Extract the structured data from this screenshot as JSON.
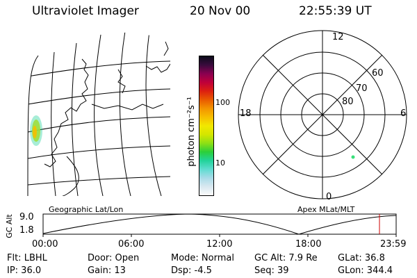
{
  "header": {
    "title": "Ultraviolet Imager",
    "date": "20 Nov 00",
    "time": "22:55:39 UT"
  },
  "colorbar": {
    "label": "photon cm⁻²s⁻¹",
    "tick_100": "100",
    "tick_10": "10",
    "colors": [
      "#fbfbfb",
      "#d9e8f0",
      "#a8dbe8",
      "#5fdcd0",
      "#22d39a",
      "#2bcf3a",
      "#8ee015",
      "#d4e600",
      "#f2e800",
      "#f6be00",
      "#f39400",
      "#e95a00",
      "#dc1f10",
      "#c0003a",
      "#8a0050",
      "#3a0b3d",
      "#0b0b1a"
    ]
  },
  "polar": {
    "lat_80": "80",
    "lat_70": "70",
    "lat_60": "60",
    "mlt_12": "12",
    "mlt_18": "18",
    "mlt_6": "6",
    "mlt_0": "0",
    "dot_color": "#39e07a"
  },
  "timeline": {
    "left_label": "Geographic Lat/Lon",
    "right_label": "Apex MLat/MLT",
    "axis_title": "GC Alt",
    "y_top": "9.0",
    "y_bottom": "1.8",
    "ticks": [
      "00:00",
      "06:00",
      "12:00",
      "18:00",
      "23:59"
    ],
    "marker_color": "#cc0000"
  },
  "info": {
    "flt": "Flt: LBHL",
    "door": "Door: Open",
    "mode": "Mode: Normal",
    "gcalt": "GC Alt: 7.9 Re",
    "glat": "GLat:  36.8",
    "ip": "IP: 36.0",
    "gain": "Gain: 13",
    "dsp": "Dsp:   -4.5",
    "seq": "Seq: 39",
    "glon": "GLon: 344.4"
  }
}
